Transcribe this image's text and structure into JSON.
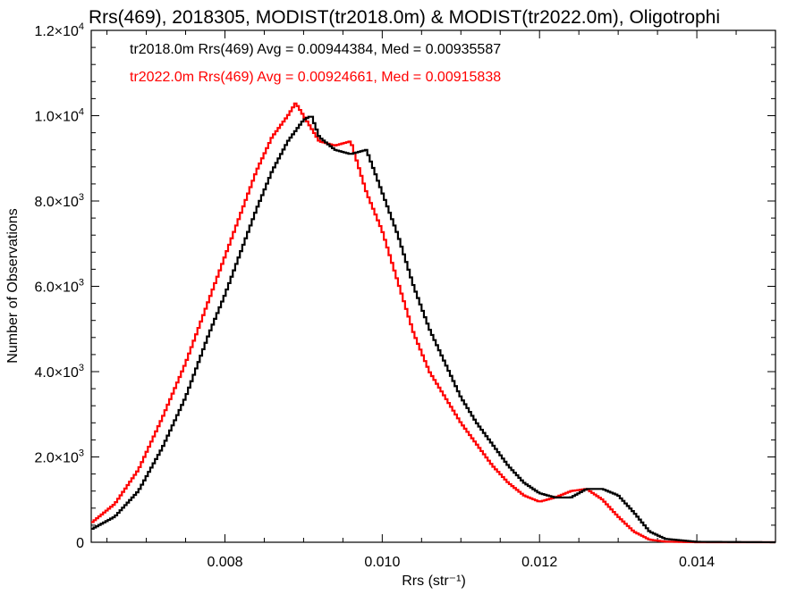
{
  "chart_data": {
    "type": "line",
    "title": "Rrs(469), 2018305, MODIST(tr2018.0m) & MODIST(tr2022.0m), Oligotrophi",
    "xlabel": "Rrs (str⁻¹)",
    "ylabel": "Number of Observations",
    "xlim": [
      0.0063,
      0.015
    ],
    "ylim": [
      0,
      12000
    ],
    "x_ticks": [
      0.008,
      0.01,
      0.012,
      0.014
    ],
    "x_tick_labels": [
      "0.008",
      "0.010",
      "0.012",
      "0.014"
    ],
    "y_tick_labels": [
      {
        "value": 0,
        "mantissa": "0",
        "exp": ""
      },
      {
        "value": 2000,
        "mantissa": "2.0×10",
        "exp": "3"
      },
      {
        "value": 4000,
        "mantissa": "4.0×10",
        "exp": "3"
      },
      {
        "value": 6000,
        "mantissa": "6.0×10",
        "exp": "3"
      },
      {
        "value": 8000,
        "mantissa": "8.0×10",
        "exp": "3"
      },
      {
        "value": 10000,
        "mantissa": "1.0×10",
        "exp": "4"
      },
      {
        "value": 12000,
        "mantissa": "1.2×10",
        "exp": "4"
      }
    ],
    "legend_position": "top-left",
    "series": [
      {
        "name": "tr2018.0m Rrs(469) Avg = 0.00944384, Med = 0.00935587",
        "color": "#000000",
        "x": [
          0.0063,
          0.0066,
          0.0069,
          0.0072,
          0.0075,
          0.0078,
          0.008,
          0.0082,
          0.0084,
          0.0086,
          0.0088,
          0.009,
          0.0091,
          0.0092,
          0.0094,
          0.0096,
          0.0098,
          0.01,
          0.0102,
          0.0104,
          0.0106,
          0.0108,
          0.011,
          0.0112,
          0.0114,
          0.0116,
          0.0118,
          0.012,
          0.0122,
          0.0124,
          0.0126,
          0.0128,
          0.013,
          0.0132,
          0.0134,
          0.0136,
          0.014,
          0.015
        ],
        "y": [
          300,
          600,
          1200,
          2200,
          3400,
          4900,
          5800,
          6800,
          7800,
          8700,
          9400,
          9900,
          10000,
          9500,
          9200,
          9100,
          9200,
          8200,
          7200,
          6000,
          5000,
          4200,
          3400,
          2800,
          2300,
          1800,
          1400,
          1150,
          1050,
          1050,
          1250,
          1250,
          1100,
          700,
          250,
          80,
          10,
          0
        ]
      },
      {
        "name": "tr2022.0m Rrs(469) Avg = 0.00924661, Med = 0.00915838",
        "color": "#ff0000",
        "x": [
          0.0063,
          0.0066,
          0.0069,
          0.0072,
          0.0075,
          0.0078,
          0.008,
          0.0082,
          0.0084,
          0.0086,
          0.0088,
          0.0089,
          0.009,
          0.0092,
          0.0094,
          0.0096,
          0.0098,
          0.01,
          0.0102,
          0.0104,
          0.0106,
          0.0108,
          0.011,
          0.0112,
          0.0114,
          0.0116,
          0.0118,
          0.012,
          0.0122,
          0.0124,
          0.0126,
          0.0128,
          0.013,
          0.0132,
          0.0134,
          0.0136,
          0.014,
          0.015
        ],
        "y": [
          450,
          900,
          1700,
          2900,
          4200,
          5700,
          6700,
          7700,
          8700,
          9500,
          10000,
          10300,
          10000,
          9400,
          9300,
          9400,
          8200,
          7300,
          6100,
          4900,
          4000,
          3400,
          2800,
          2300,
          1800,
          1400,
          1100,
          950,
          1050,
          1200,
          1250,
          1000,
          600,
          250,
          60,
          15,
          0,
          0
        ]
      }
    ]
  }
}
